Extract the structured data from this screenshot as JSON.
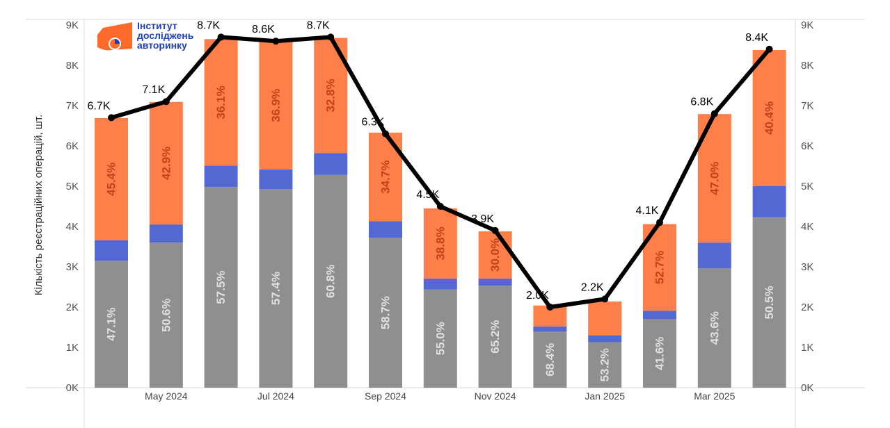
{
  "logo": {
    "lines": [
      "Інститут",
      "досліджень",
      "авторинку"
    ],
    "colors": {
      "orange": "#ff6a2b",
      "blue": "#1f3fb5"
    }
  },
  "chart_data": {
    "type": "bar",
    "stacked": true,
    "ylabel": "Кількість реєстраційних операцій, шт.",
    "ylim": [
      0,
      9000
    ],
    "yticks": [
      "0K",
      "1K",
      "2K",
      "3K",
      "4K",
      "5K",
      "6K",
      "7K",
      "8K",
      "9K"
    ],
    "y_axis_sides": [
      "left",
      "right"
    ],
    "grid": false,
    "x_tick_labels": [
      {
        "index": 1,
        "label": "May 2024"
      },
      {
        "index": 3,
        "label": "Jul 2024"
      },
      {
        "index": 5,
        "label": "Sep 2024"
      },
      {
        "index": 7,
        "label": "Nov 2024"
      },
      {
        "index": 9,
        "label": "Jan 2025"
      },
      {
        "index": 11,
        "label": "Mar 2025"
      }
    ],
    "series": [
      {
        "color": "#8f8f8f",
        "values": [
          3150,
          3600,
          4980,
          4930,
          5280,
          3720,
          2440,
          2530,
          1390,
          1130,
          1700,
          2960,
          4230
        ],
        "labels": [
          "47.1%",
          "50.6%",
          "57.5%",
          "57.4%",
          "60.8%",
          "58.7%",
          "55.0%",
          "65.2%",
          "68.4%",
          "53.2%",
          "41.6%",
          "43.6%",
          "50.5%"
        ],
        "label_color": "#e0e0e0"
      },
      {
        "color": "#5468d4",
        "values": [
          510,
          450,
          530,
          490,
          540,
          410,
          270,
          180,
          130,
          170,
          210,
          640,
          770
        ]
      },
      {
        "color": "#ff7f4a",
        "values": [
          3030,
          3040,
          3140,
          3170,
          2860,
          2200,
          1740,
          1170,
          520,
          840,
          2150,
          3190,
          3380
        ],
        "labels": [
          "45.4%",
          "42.9%",
          "36.1%",
          "36.9%",
          "32.8%",
          "34.7%",
          "38.8%",
          "30.0%",
          "",
          "",
          "52.7%",
          "47.0%",
          "40.4%"
        ],
        "label_color": "#c4411a"
      }
    ],
    "line": {
      "color": "#000000",
      "values": [
        6700,
        7100,
        8700,
        8600,
        8700,
        6300,
        4500,
        3900,
        2000,
        2200,
        4100,
        6800,
        8400
      ],
      "labels": [
        "6.7K",
        "7.1K",
        "8.7K",
        "8.6K",
        "8.7K",
        "6.3K",
        "4.5K",
        "3.9K",
        "2.0K",
        "2.2K",
        "4.1K",
        "6.8K",
        "8.4K"
      ]
    }
  }
}
